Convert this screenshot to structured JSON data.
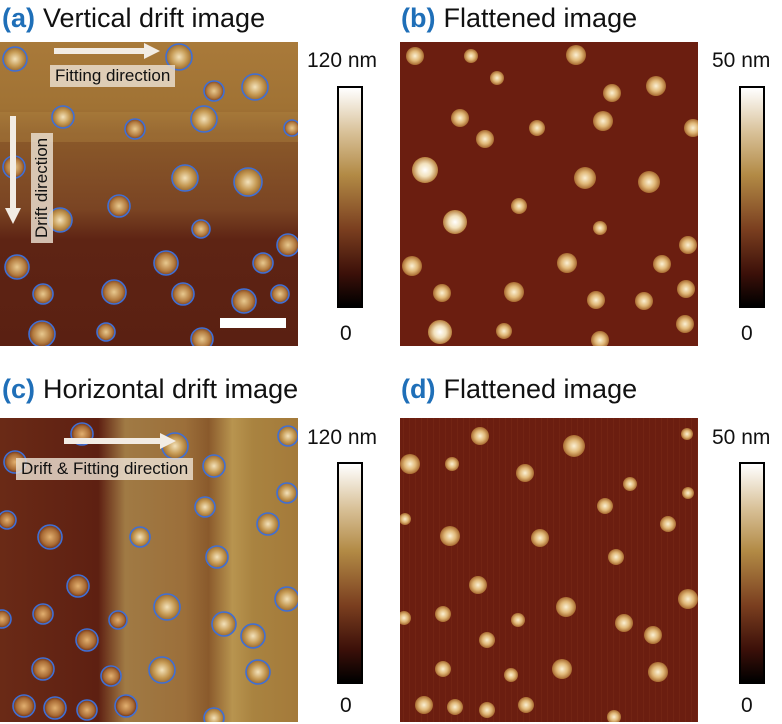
{
  "panels": {
    "a": {
      "label": "(a)",
      "title": "Vertical drift image"
    },
    "b": {
      "label": "(b)",
      "title": "Flattened image"
    },
    "c": {
      "label": "(c)",
      "title": "Horizontal drift image"
    },
    "d": {
      "label": "(d)",
      "title": "Flattened image"
    }
  },
  "colorbars": {
    "a": {
      "max": "120 nm",
      "min": "0"
    },
    "b": {
      "max": "50 nm",
      "min": "0"
    },
    "c": {
      "max": "120 nm",
      "min": "0"
    },
    "d": {
      "max": "50 nm",
      "min": "0"
    }
  },
  "annotations": {
    "fitting_direction": "Fitting direction",
    "drift_direction": "Drift direction",
    "drift_fitting_direction": "Drift & Fitting direction"
  },
  "colors": {
    "background": "#6b1e10",
    "circle_outline": "#3f6fd6",
    "label_blue": "#1f6fb8"
  }
}
